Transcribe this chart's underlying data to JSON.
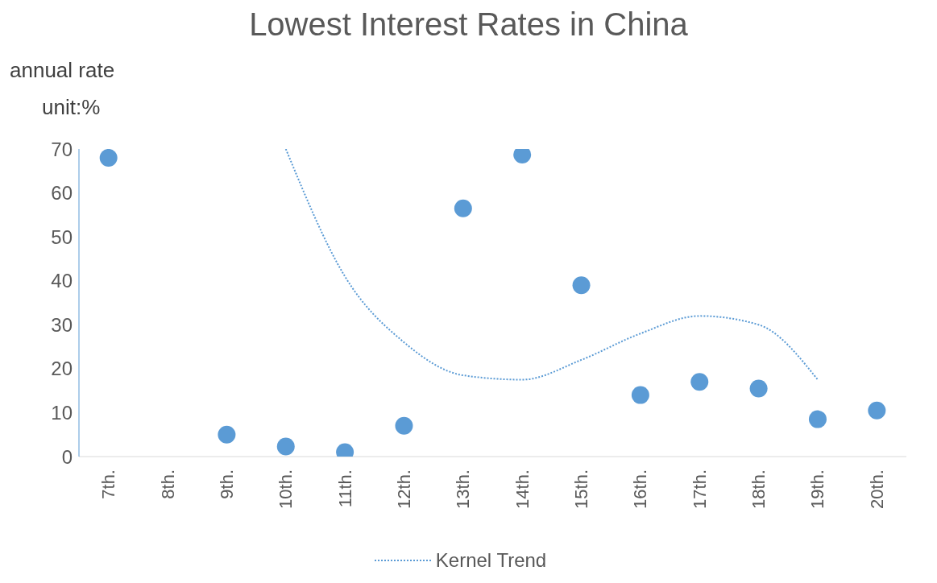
{
  "chart_data": {
    "type": "scatter",
    "title": "Lowest Interest Rates in China",
    "ylabel": "annual rate",
    "annotations": [
      "unit:%"
    ],
    "categories": [
      "7th.",
      "8th.",
      "9th.",
      "10th.",
      "11th.",
      "12th.",
      "13th.",
      "14th.",
      "15th.",
      "16th.",
      "17th.",
      "18th.",
      "19th.",
      "20th."
    ],
    "ylim": [
      0,
      70
    ],
    "yticks": [
      0,
      10,
      20,
      30,
      40,
      50,
      60,
      70
    ],
    "legend": "bottom",
    "series": [
      {
        "color": "#5b9bd5",
        "marker": "circle",
        "values": [
          68,
          null,
          5,
          2.3,
          1,
          7,
          56.5,
          68.7,
          39,
          14,
          17,
          15.5,
          8.5,
          10.5
        ]
      },
      {
        "type": "line",
        "name": "Kernel Trend",
        "color": "#5b9bd5",
        "line_style": "dotted",
        "values": [
          null,
          null,
          null,
          70,
          41,
          26,
          18.5,
          17.5,
          22,
          28,
          32,
          30,
          17.5,
          null
        ]
      }
    ]
  }
}
